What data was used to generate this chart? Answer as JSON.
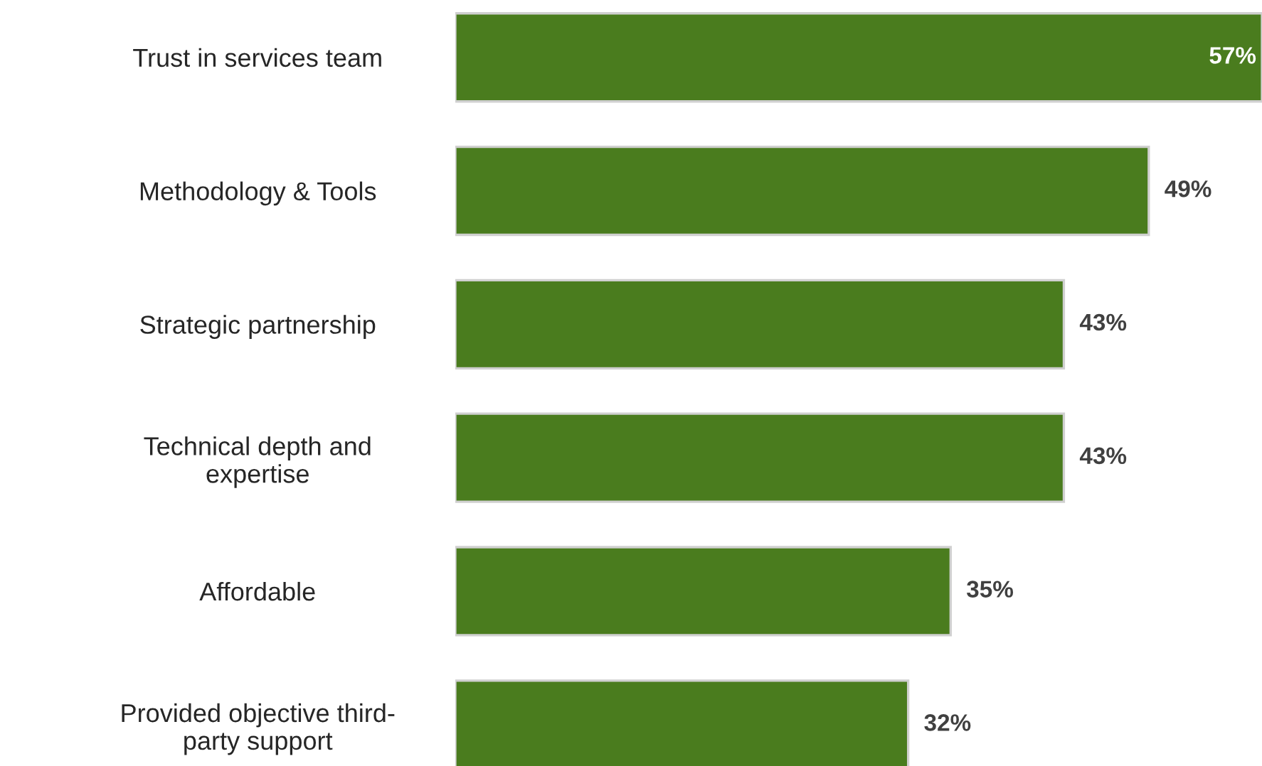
{
  "chart_data": {
    "type": "bar",
    "orientation": "horizontal",
    "categories": [
      "Trust in services team",
      "Methodology & Tools",
      "Strategic partnership",
      "Technical depth and\nexpertise",
      "Affordable",
      "Provided objective third-\nparty support"
    ],
    "values": [
      57,
      49,
      43,
      43,
      35,
      32
    ],
    "value_labels": [
      "57%",
      "49%",
      "43%",
      "43%",
      "35%",
      "32%"
    ],
    "color": "#4a7c1e"
  }
}
